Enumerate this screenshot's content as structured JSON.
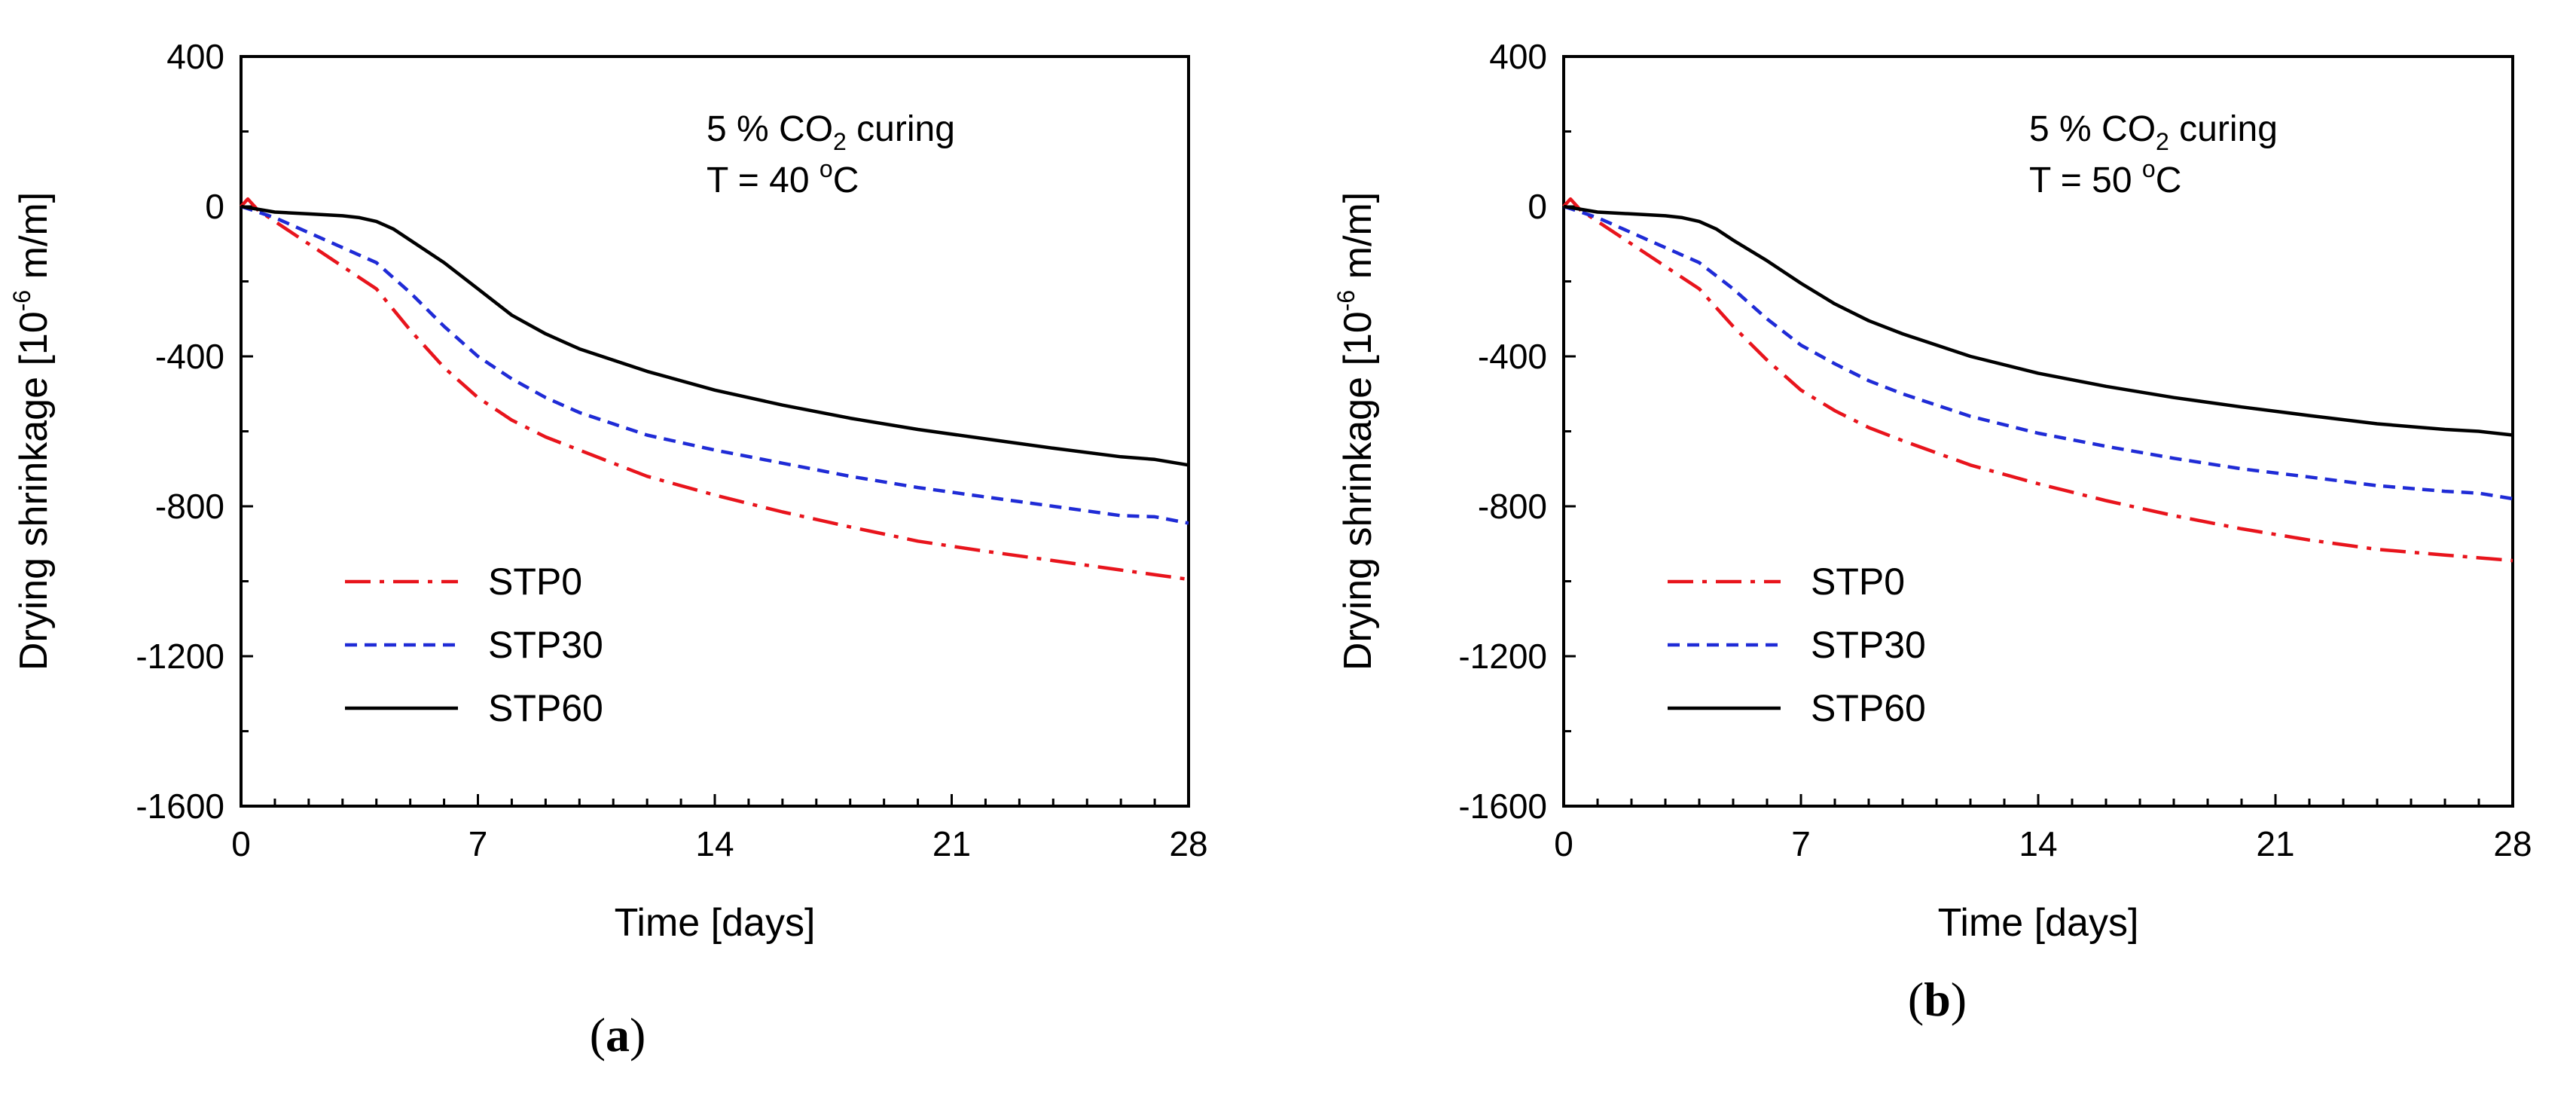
{
  "figure": {
    "colors": {
      "STP0": "#e8141c",
      "STP30": "#1f2bd6",
      "STP60": "#000000"
    }
  },
  "chart_data": [
    {
      "type": "line",
      "panel_label": "a",
      "title": "",
      "annotation": {
        "line1_prefix": "5 % CO",
        "line1_sub": "2",
        "line1_suffix": " curing",
        "line2_prefix": "T = 40 ",
        "line2_sup": "o",
        "line2_suffix": "C"
      },
      "xlabel": "Time [days]",
      "ylabel": {
        "prefix": "Drying shrinkage [10",
        "sup": "-6",
        "suffix": " m/m]"
      },
      "xlim": [
        0,
        28
      ],
      "ylim": [
        -1600,
        400
      ],
      "xticks": [
        0,
        7,
        14,
        21,
        28
      ],
      "yticks": [
        400,
        0,
        -400,
        -800,
        -1200,
        -1600
      ],
      "legend_position": "lower-left",
      "series": [
        {
          "name": "STP0",
          "style": "dash-dot",
          "x": [
            0,
            0.2,
            0.5,
            1,
            2,
            3,
            4,
            5,
            6,
            7,
            8,
            9,
            10,
            12,
            14,
            16,
            18,
            20,
            22,
            24,
            26,
            28
          ],
          "y": [
            0,
            20,
            -10,
            -40,
            -100,
            -160,
            -220,
            -330,
            -430,
            -510,
            -570,
            -615,
            -650,
            -720,
            -770,
            -815,
            -855,
            -893,
            -920,
            -945,
            -970,
            -995
          ]
        },
        {
          "name": "STP30",
          "style": "dashed",
          "x": [
            0,
            1,
            2,
            3,
            4,
            5,
            6,
            7,
            8,
            9,
            10,
            12,
            14,
            16,
            18,
            20,
            22,
            24,
            26,
            27,
            28
          ],
          "y": [
            0,
            -30,
            -70,
            -110,
            -150,
            -230,
            -320,
            -400,
            -460,
            -510,
            -550,
            -610,
            -650,
            -685,
            -720,
            -750,
            -775,
            -800,
            -825,
            -828,
            -845
          ]
        },
        {
          "name": "STP60",
          "style": "solid",
          "x": [
            0,
            1,
            2,
            3,
            3.5,
            4,
            4.5,
            5,
            6,
            7,
            8,
            9,
            10,
            12,
            14,
            16,
            18,
            20,
            22,
            24,
            26,
            27,
            28
          ],
          "y": [
            0,
            -15,
            -20,
            -25,
            -30,
            -40,
            -60,
            -90,
            -150,
            -220,
            -290,
            -340,
            -380,
            -440,
            -490,
            -530,
            -565,
            -595,
            -620,
            -645,
            -668,
            -675,
            -690
          ]
        }
      ]
    },
    {
      "type": "line",
      "panel_label": "b",
      "title": "",
      "annotation": {
        "line1_prefix": "5 % CO",
        "line1_sub": "2",
        "line1_suffix": " curing",
        "line2_prefix": "T = 50 ",
        "line2_sup": "o",
        "line2_suffix": "C"
      },
      "xlabel": "Time [days]",
      "ylabel": {
        "prefix": "Drying shrinkage [10",
        "sup": "-6",
        "suffix": " m/m]"
      },
      "xlim": [
        0,
        28
      ],
      "ylim": [
        -1600,
        400
      ],
      "xticks": [
        0,
        7,
        14,
        21,
        28
      ],
      "yticks": [
        400,
        0,
        -400,
        -800,
        -1200,
        -1600
      ],
      "legend_position": "lower-left",
      "series": [
        {
          "name": "STP0",
          "style": "dash-dot",
          "x": [
            0,
            0.2,
            0.5,
            1,
            2,
            3,
            4,
            5,
            6,
            7,
            8,
            9,
            10,
            12,
            14,
            16,
            18,
            20,
            22,
            24,
            26,
            28
          ],
          "y": [
            0,
            20,
            -10,
            -40,
            -100,
            -160,
            -220,
            -320,
            -410,
            -490,
            -545,
            -590,
            -625,
            -690,
            -740,
            -785,
            -825,
            -860,
            -890,
            -915,
            -930,
            -945
          ]
        },
        {
          "name": "STP30",
          "style": "dashed",
          "x": [
            0,
            1,
            2,
            3,
            4,
            5,
            6,
            7,
            8,
            9,
            10,
            12,
            14,
            16,
            18,
            20,
            22,
            24,
            26,
            27,
            28
          ],
          "y": [
            0,
            -30,
            -70,
            -110,
            -150,
            -220,
            -300,
            -370,
            -420,
            -465,
            -500,
            -560,
            -605,
            -640,
            -672,
            -700,
            -722,
            -745,
            -760,
            -765,
            -780
          ]
        },
        {
          "name": "STP60",
          "style": "solid",
          "x": [
            0,
            1,
            2,
            3,
            3.5,
            4,
            4.5,
            5,
            6,
            7,
            8,
            9,
            10,
            12,
            14,
            16,
            18,
            20,
            22,
            24,
            26,
            27,
            28
          ],
          "y": [
            0,
            -15,
            -20,
            -25,
            -30,
            -40,
            -60,
            -90,
            -145,
            -205,
            -260,
            -305,
            -340,
            -400,
            -445,
            -480,
            -510,
            -535,
            -558,
            -580,
            -595,
            -600,
            -610
          ]
        }
      ]
    }
  ]
}
